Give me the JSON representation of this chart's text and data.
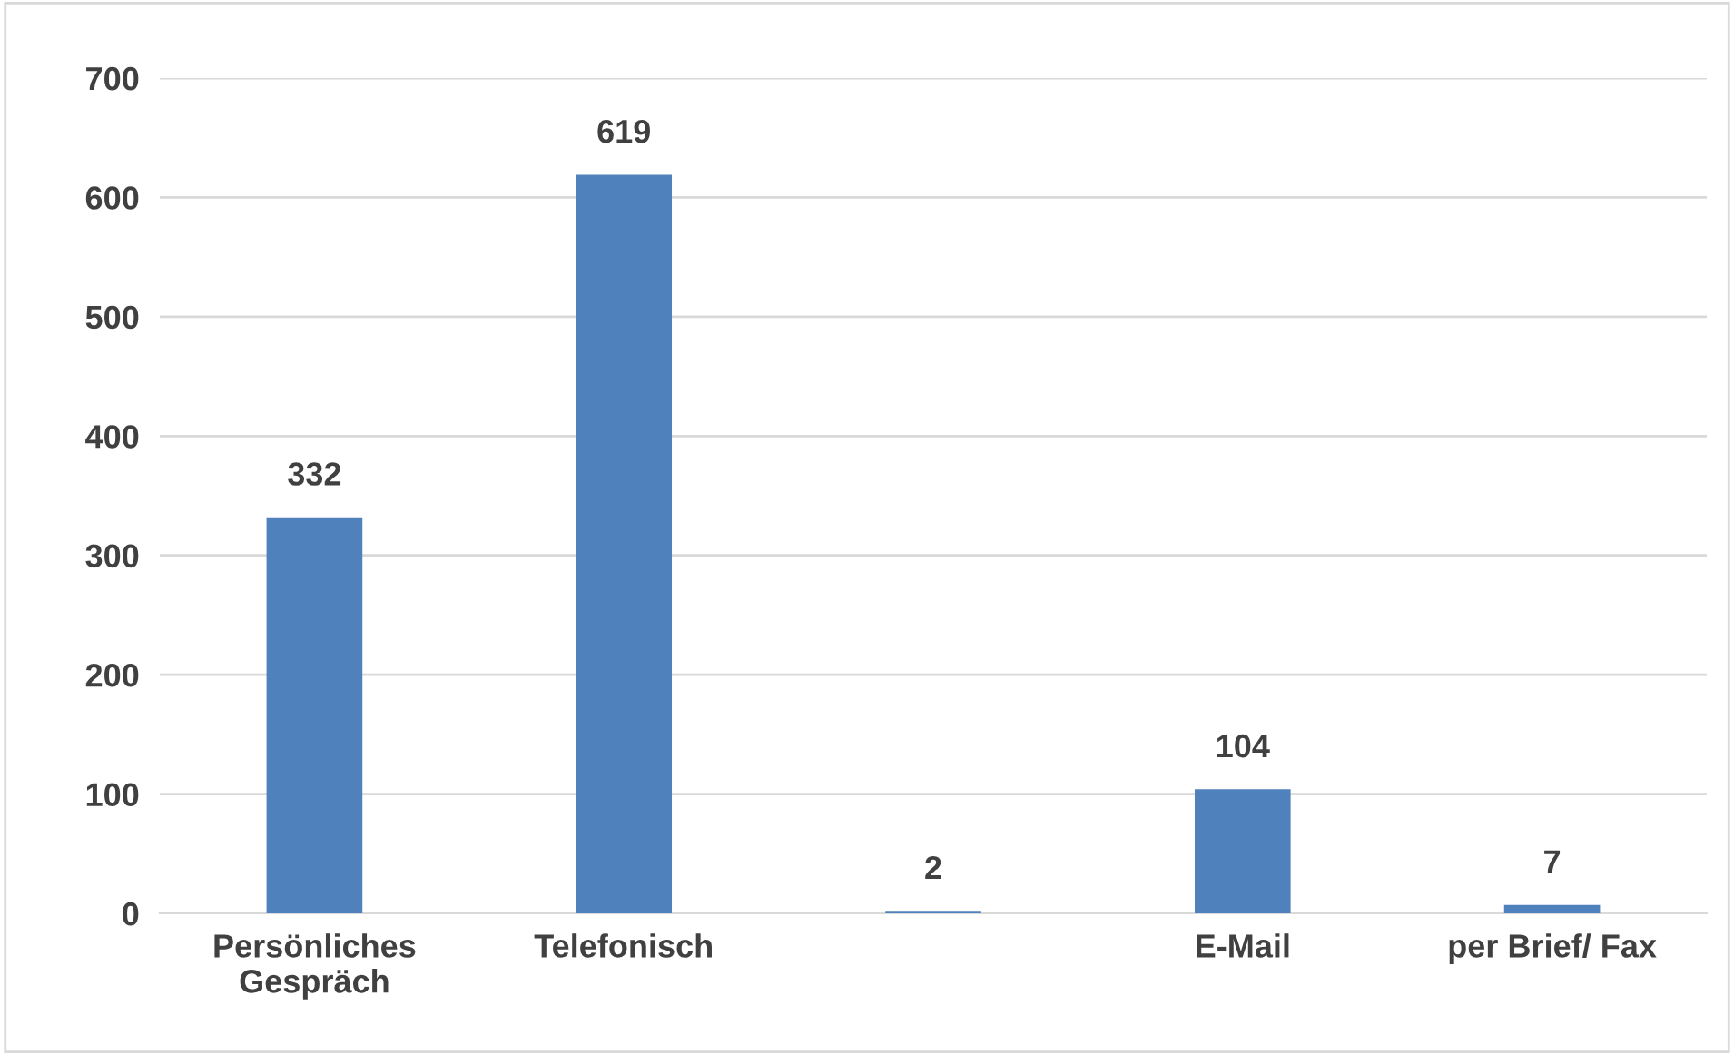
{
  "chart_data": {
    "type": "bar",
    "categories": [
      "Persönliches Gespräch",
      "Telefonisch",
      null,
      "E-Mail",
      "per Brief/ Fax"
    ],
    "values": [
      332,
      619,
      2,
      104,
      7
    ],
    "color": "#4f81bd",
    "ylim": [
      0,
      700
    ],
    "yticks": [
      0,
      100,
      200,
      300,
      400,
      500,
      600,
      700
    ],
    "grid": "y",
    "data_labels": true
  }
}
